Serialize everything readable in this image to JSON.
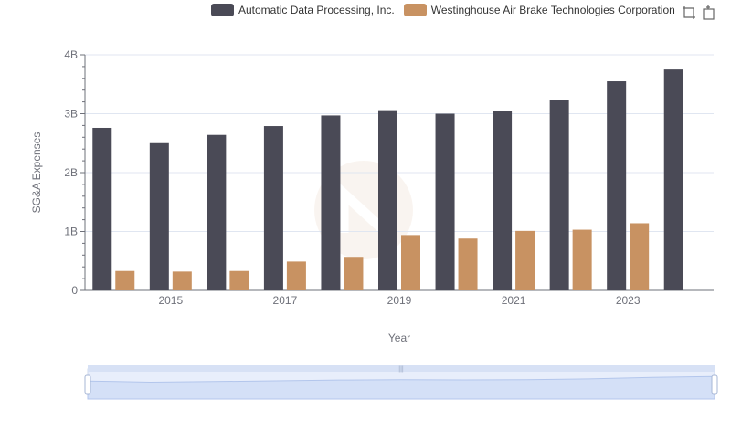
{
  "legend": [
    {
      "name": "Automatic Data Processing, Inc.",
      "color": "#4a4a56"
    },
    {
      "name": "Westinghouse Air Brake Technologies Corporation",
      "color": "#c89262"
    }
  ],
  "toolbox": {
    "icons": [
      "zoom-icon",
      "zoom-reset-icon"
    ]
  },
  "chart_data": {
    "type": "bar",
    "xlabel": "Year",
    "ylabel": "SG&A Expenses",
    "categories": [
      "2014",
      "2015",
      "2016",
      "2017",
      "2018",
      "2019",
      "2020",
      "2021",
      "2022",
      "2023",
      "2024"
    ],
    "x_tick_labels": [
      "2015",
      "2017",
      "2019",
      "2021",
      "2023"
    ],
    "y_tick_labels": [
      "0",
      "1B",
      "2B",
      "3B",
      "4B"
    ],
    "ylim": [
      0,
      4000000000
    ],
    "grid": true,
    "legend_position": "top",
    "series": [
      {
        "name": "Automatic Data Processing, Inc.",
        "color": "#4a4a56",
        "values": [
          2760000000,
          2500000000,
          2640000000,
          2790000000,
          2970000000,
          3060000000,
          3000000000,
          3040000000,
          3230000000,
          3550000000,
          3750000000
        ]
      },
      {
        "name": "Westinghouse Air Brake Technologies Corporation",
        "color": "#c89262",
        "values": [
          330000000,
          320000000,
          330000000,
          490000000,
          570000000,
          940000000,
          880000000,
          1010000000,
          1030000000,
          1140000000,
          null
        ]
      }
    ]
  },
  "data_zoom": {
    "start": 0,
    "end": 100,
    "handle_label": "|||"
  }
}
